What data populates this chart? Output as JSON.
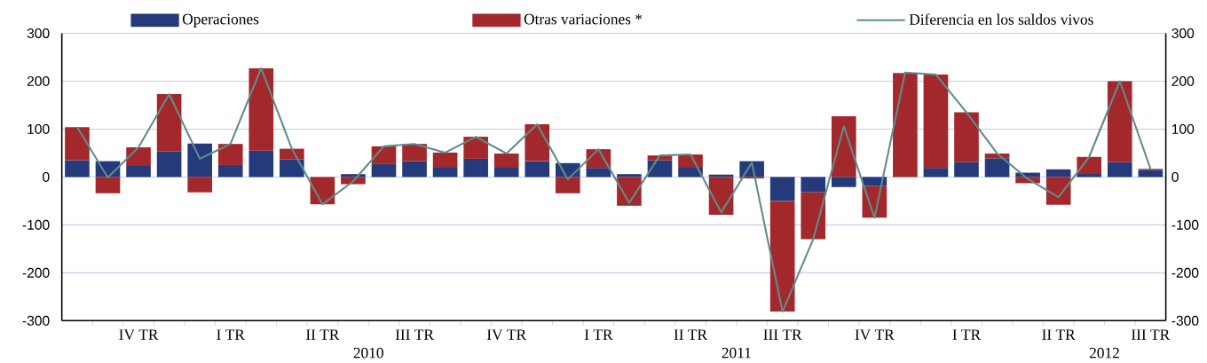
{
  "chart_data": {
    "type": "bar",
    "stacked": true,
    "categories": [
      null,
      null,
      "IV TR",
      null,
      null,
      "I TR",
      null,
      null,
      "II TR",
      null,
      null,
      "III TR",
      null,
      null,
      "IV TR",
      null,
      null,
      "I TR",
      null,
      null,
      "II TR",
      null,
      null,
      "III TR",
      null,
      null,
      "IV TR",
      null,
      null,
      "I TR",
      null,
      null,
      "II TR",
      null,
      null,
      "III TR"
    ],
    "series": [
      {
        "name": "Operaciones",
        "color": "#253a7a",
        "values": [
          35,
          33,
          23,
          53,
          70,
          25,
          55,
          37,
          0,
          6,
          27,
          33,
          21,
          38,
          21,
          33,
          29,
          19,
          6,
          35,
          21,
          5,
          33,
          -50,
          -32,
          -21,
          -19,
          null,
          19,
          31,
          39,
          9,
          16,
          8,
          31,
          15
        ]
      },
      {
        "name": "Otras variaciones *",
        "color": "#a3282c",
        "values": [
          69,
          -34,
          39,
          120,
          -32,
          44,
          172,
          22,
          -57,
          -15,
          37,
          36,
          30,
          46,
          28,
          77,
          -34,
          39,
          -60,
          10,
          26,
          -79,
          -3,
          -231,
          -98,
          127,
          -66,
          217,
          195,
          104,
          10,
          -13,
          -58,
          34,
          169,
          2
        ]
      },
      {
        "name": "Diferencia en los saldos vivos",
        "type": "line",
        "color": "#5f8c8c",
        "values": [
          104,
          -1,
          62,
          173,
          38,
          69,
          227,
          59,
          -57,
          -9,
          64,
          69,
          51,
          84,
          49,
          110,
          -5,
          58,
          -54,
          45,
          47,
          -74,
          30,
          -281,
          -130,
          106,
          -85,
          218,
          214,
          135,
          49,
          -4,
          -42,
          42,
          200,
          17
        ]
      }
    ],
    "ylim": [
      -300,
      300
    ],
    "yticks": [
      -300,
      -200,
      -100,
      0,
      100,
      200,
      300
    ],
    "y2lim": [
      -300,
      300
    ],
    "y2ticks": [
      -300,
      -200,
      -100,
      0,
      100,
      200,
      300
    ],
    "grid": "y",
    "legend": "top",
    "annotations": [
      "2010",
      "2011",
      "2012"
    ]
  }
}
